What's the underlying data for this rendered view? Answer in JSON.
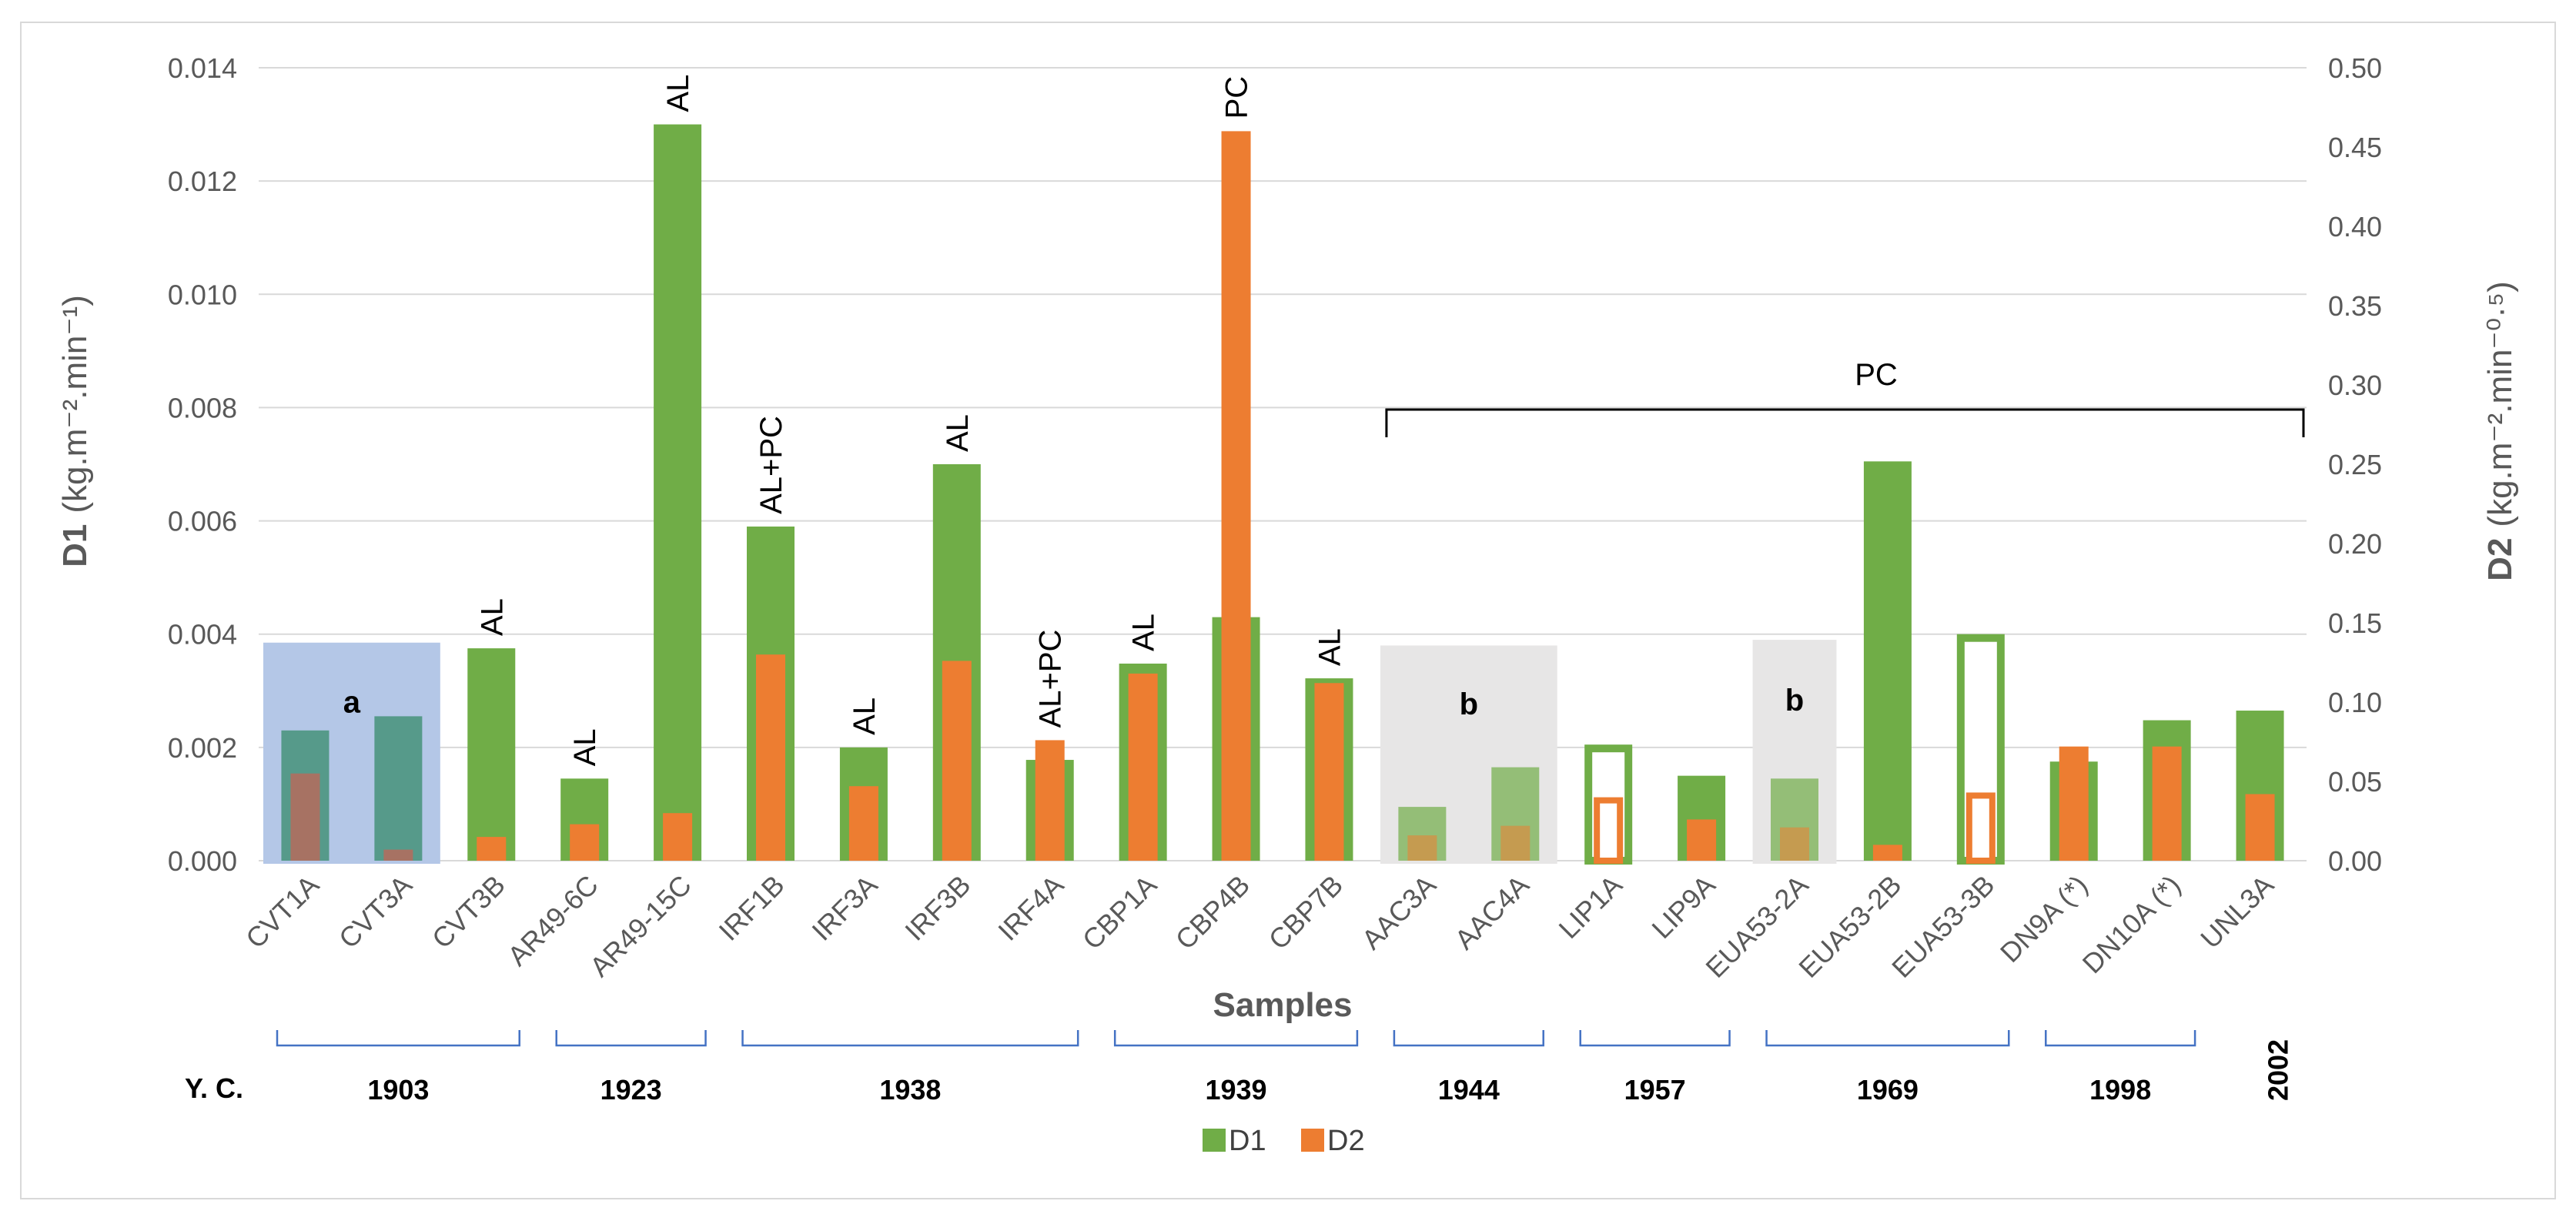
{
  "chart_data": {
    "type": "bar",
    "title": "",
    "xlabel": "Samples",
    "ylabel_left_main": "D1",
    "ylabel_left_unit": "(kg.m⁻².min⁻¹)",
    "ylabel_right_main": "D2",
    "ylabel_right_unit": "(kg.m⁻².min⁻⁰·⁵)",
    "ylim_left": [
      0,
      0.014
    ],
    "ylim_right": [
      0,
      0.5
    ],
    "yticks_left": [
      "0.000",
      "0.002",
      "0.004",
      "0.006",
      "0.008",
      "0.010",
      "0.012",
      "0.014"
    ],
    "yticks_right": [
      "0.00",
      "0.05",
      "0.10",
      "0.15",
      "0.20",
      "0.25",
      "0.30",
      "0.35",
      "0.40",
      "0.45",
      "0.50"
    ],
    "categories": [
      "CVT1A",
      "CVT3A",
      "CVT3B",
      "AR49-6C",
      "AR49-15C",
      "IRF1B",
      "IRF3A",
      "IRF3B",
      "IRF4A",
      "CBP1A",
      "CBP4B",
      "CBP7B",
      "AAC3A",
      "AAC4A",
      "LIP1A",
      "LIP9A",
      "EUA53-2A",
      "EUA53-2B",
      "EUA53-3B",
      "DN9A (*)",
      "DN10A (*)",
      "UNL3A"
    ],
    "series": [
      {
        "name": "D1",
        "axis": "left",
        "color": "#70ad47",
        "values": [
          0.0023,
          0.00255,
          0.00375,
          0.00145,
          0.013,
          0.0059,
          0.002,
          0.007,
          0.00178,
          0.00348,
          0.0043,
          0.00322,
          0.00095,
          0.00165,
          0.00205,
          0.0015,
          0.00145,
          0.00705,
          0.004,
          0.00175,
          0.00248,
          0.00265
        ],
        "styles": [
          "shaded-a",
          "shaded-a",
          "solid",
          "solid",
          "solid",
          "solid",
          "solid",
          "solid",
          "solid",
          "solid",
          "solid",
          "solid",
          "shaded-b",
          "shaded-b",
          "outline",
          "solid",
          "shaded-b",
          "solid",
          "outline",
          "solid",
          "solid",
          "solid"
        ]
      },
      {
        "name": "D2",
        "axis": "right",
        "color": "#ed7d31",
        "values": [
          0.055,
          0.007,
          0.015,
          0.023,
          0.03,
          0.13,
          0.047,
          0.126,
          0.076,
          0.118,
          0.46,
          0.112,
          0.016,
          0.022,
          0.04,
          0.026,
          0.021,
          0.01,
          0.043,
          0.072,
          0.072,
          0.042
        ],
        "styles": [
          "shaded-a",
          "shaded-a",
          "solid",
          "solid",
          "solid",
          "solid",
          "solid",
          "solid",
          "solid",
          "solid",
          "solid",
          "solid",
          "shaded-b",
          "shaded-b",
          "outline",
          "solid",
          "shaded-b",
          "solid",
          "outline",
          "solid",
          "solid",
          "solid"
        ]
      }
    ],
    "annotations": [
      {
        "label": "AL",
        "category": "CVT3B"
      },
      {
        "label": "AL",
        "category": "AR49-6C"
      },
      {
        "label": "AL",
        "category": "AR49-15C"
      },
      {
        "label": "AL+PC",
        "category": "IRF1B"
      },
      {
        "label": "AL",
        "category": "IRF3A"
      },
      {
        "label": "AL",
        "category": "IRF3B"
      },
      {
        "label": "AL+PC",
        "category": "IRF4A"
      },
      {
        "label": "AL",
        "category": "CBP1A"
      },
      {
        "label": "PC",
        "category": "CBP4B"
      },
      {
        "label": "AL",
        "category": "CBP7B"
      }
    ],
    "bracket_label": "PC",
    "bracket_range": [
      "AAC3A",
      "UNL3A"
    ],
    "highlight_boxes": [
      {
        "label": "a",
        "from": "CVT1A",
        "to": "CVT3A",
        "color": "#b4c7e7",
        "top_value": 0.00385
      },
      {
        "label": "b",
        "from": "AAC3A",
        "to": "AAC4A",
        "color": "#e7e6e6",
        "top_value": 0.0038
      },
      {
        "label": "b",
        "from": "EUA53-2A",
        "to": "EUA53-2A",
        "color": "#e7e6e6",
        "top_value": 0.0039
      }
    ],
    "year_prefix": "Y. C.",
    "year_groups": [
      {
        "year": "1903",
        "from": "CVT1A",
        "to": "CVT3B"
      },
      {
        "year": "1923",
        "from": "AR49-6C",
        "to": "AR49-15C"
      },
      {
        "year": "1938",
        "from": "IRF1B",
        "to": "IRF4A"
      },
      {
        "year": "1939",
        "from": "CBP1A",
        "to": "CBP7B"
      },
      {
        "year": "1944",
        "from": "AAC3A",
        "to": "AAC4A"
      },
      {
        "year": "1957",
        "from": "LIP1A",
        "to": "LIP9A"
      },
      {
        "year": "1969",
        "from": "EUA53-2A",
        "to": "EUA53-3B"
      },
      {
        "year": "1998",
        "from": "DN9A (*)",
        "to": "DN10A (*)"
      },
      {
        "year": "2002",
        "from": "UNL3A",
        "to": "UNL3A",
        "vertical": true
      }
    ],
    "legend": [
      {
        "name": "D1",
        "color": "#70ad47"
      },
      {
        "name": "D2",
        "color": "#ed7d31"
      }
    ],
    "grid": true,
    "legend_position": "bottom-center"
  }
}
